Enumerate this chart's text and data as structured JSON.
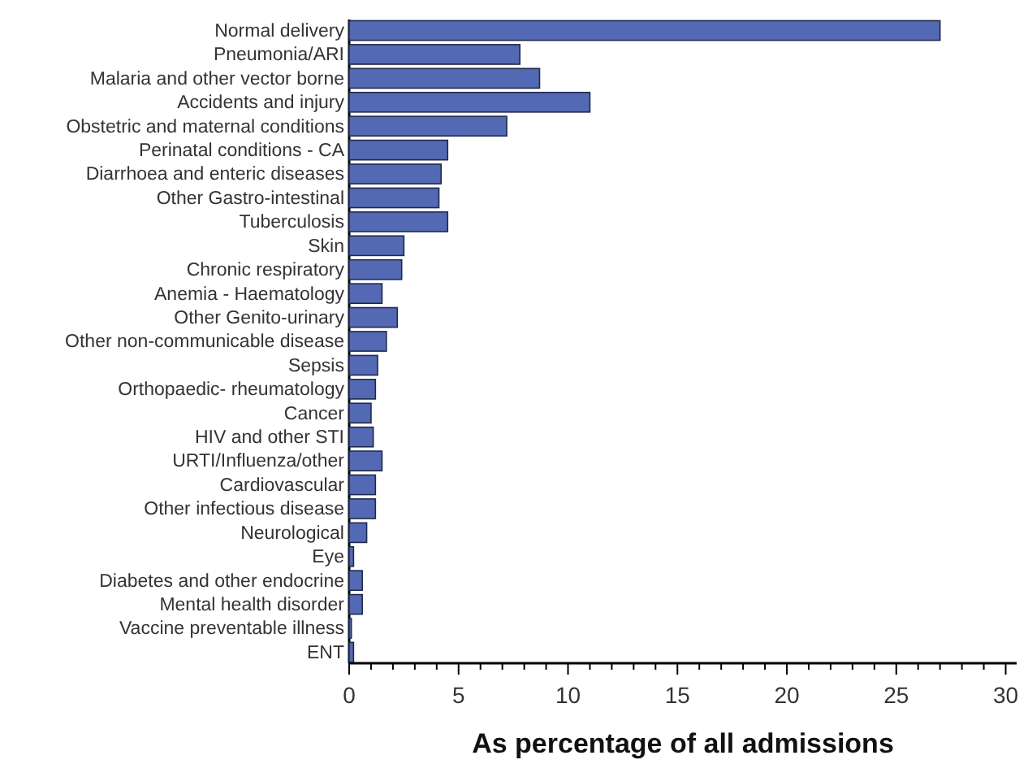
{
  "chart_data": {
    "type": "bar",
    "orientation": "horizontal",
    "xlabel": "As percentage of all admissions",
    "categories": [
      "Normal delivery",
      "Pneumonia/ARI",
      "Malaria and other vector borne",
      "Accidents and injury",
      "Obstetric and maternal conditions",
      "Perinatal conditions - CA",
      "Diarrhoea and enteric diseases",
      "Other Gastro-intestinal",
      "Tuberculosis",
      "Skin",
      "Chronic respiratory",
      "Anemia - Haematology",
      "Other Genito-urinary",
      "Other non-communicable disease",
      "Sepsis",
      "Orthopaedic- rheumatology",
      "Cancer",
      "HIV and other STI",
      "URTI/Influenza/other",
      "Cardiovascular",
      "Other infectious disease",
      "Neurological",
      "Eye",
      "Diabetes and other endocrine",
      "Mental health disorder",
      "Vaccine preventable illness",
      "ENT"
    ],
    "values": [
      27.0,
      7.8,
      8.7,
      11.0,
      7.2,
      4.5,
      4.2,
      4.1,
      4.5,
      2.5,
      2.4,
      1.5,
      2.2,
      1.7,
      1.3,
      1.2,
      1.0,
      1.1,
      1.5,
      1.2,
      1.2,
      0.8,
      0.2,
      0.6,
      0.6,
      0.1,
      0.2
    ],
    "color": "#5469b3",
    "xlim": [
      0,
      30.5
    ],
    "xticks": [
      0,
      {
        "value": 1,
        "label": null
      },
      {
        "value": 2,
        "label": null
      },
      {
        "value": 3,
        "label": null
      },
      {
        "value": 4,
        "label": null
      },
      5,
      {
        "value": 6,
        "label": null
      },
      {
        "value": 7,
        "label": null
      },
      {
        "value": 8,
        "label": null
      },
      {
        "value": 9,
        "label": null
      },
      10,
      {
        "value": 11,
        "label": null
      },
      {
        "value": 12,
        "label": null
      },
      {
        "value": 13,
        "label": null
      },
      {
        "value": 14,
        "label": null
      },
      15,
      {
        "value": 16,
        "label": null
      },
      {
        "value": 17,
        "label": null
      },
      {
        "value": 18,
        "label": null
      },
      {
        "value": 19,
        "label": null
      },
      20,
      {
        "value": 21,
        "label": null
      },
      {
        "value": 22,
        "label": null
      },
      {
        "value": 23,
        "label": null
      },
      {
        "value": 24,
        "label": null
      },
      25,
      {
        "value": 26,
        "label": null
      },
      {
        "value": 27,
        "label": null
      },
      {
        "value": 28,
        "label": null
      },
      {
        "value": 29,
        "label": null
      },
      30
    ],
    "grid": false
  }
}
